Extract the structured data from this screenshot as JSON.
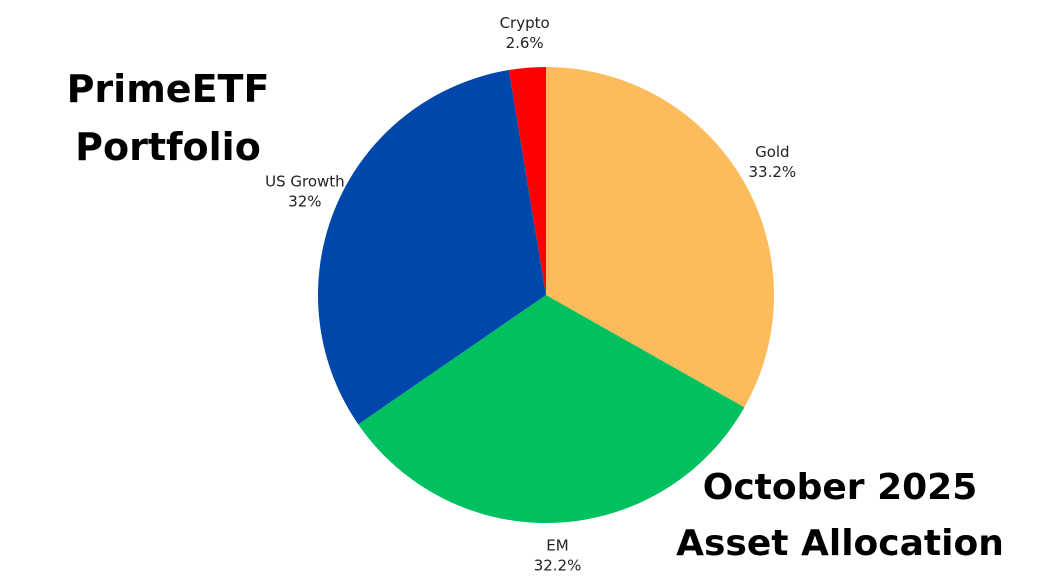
{
  "title": {
    "line1": "PrimeETF",
    "line2": "Portfolio"
  },
  "subtitle": {
    "line1": "October 2025",
    "line2": "Asset Allocation"
  },
  "chart_data": {
    "type": "pie",
    "start": "12 o'clock",
    "direction": "clockwise",
    "slices": [
      {
        "label": "Gold",
        "value": 33.2,
        "display": "33.2%",
        "color": "#FDBC5C"
      },
      {
        "label": "EM",
        "value": 32.2,
        "display": "32.2%",
        "color": "#00C060"
      },
      {
        "label": "US Growth",
        "value": 32,
        "display": "32%",
        "color": "#0047AB"
      },
      {
        "label": "Crypto",
        "value": 2.6,
        "display": "2.6%",
        "color": "#FF0000"
      }
    ]
  }
}
